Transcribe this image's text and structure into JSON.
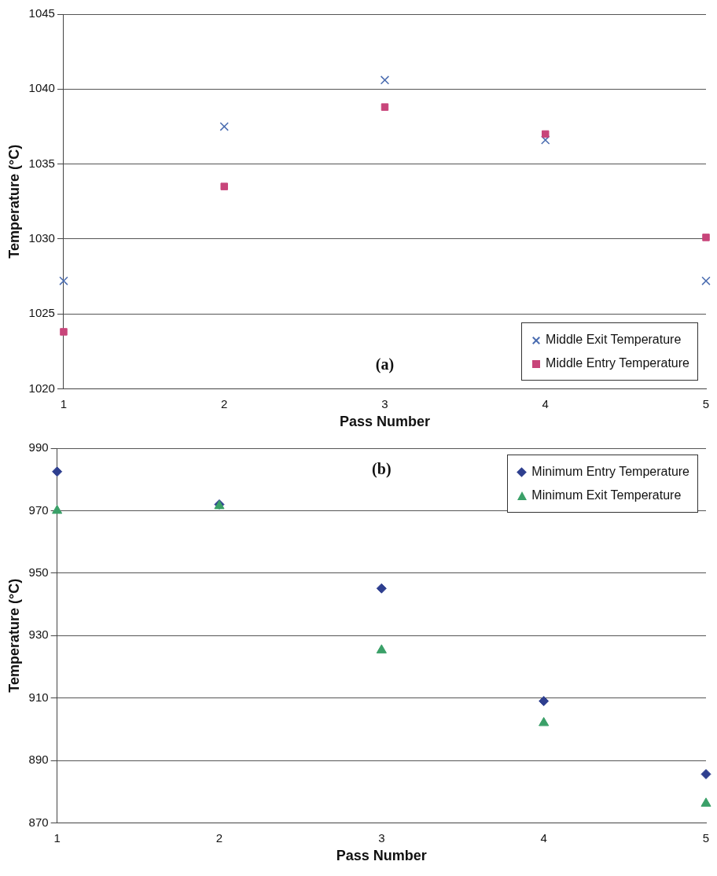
{
  "chart_data": [
    {
      "type": "scatter",
      "xlabel": "Pass Number",
      "ylabel": "Temperature (°C)",
      "x": [
        1,
        2,
        3,
        4,
        5
      ],
      "xlim": [
        1,
        5
      ],
      "xticks": [
        1,
        2,
        3,
        4,
        5
      ],
      "ylim": [
        1020,
        1045
      ],
      "yticks": [
        1020,
        1025,
        1030,
        1035,
        1040,
        1045
      ],
      "grid": "y",
      "legend": "bottom right",
      "annotations": [
        "(a)"
      ],
      "series": [
        {
          "name": "Middle Exit Temperature",
          "color": "#4a6cb0",
          "marker": "cross",
          "values": [
            1027.2,
            1037.5,
            1040.6,
            1036.6,
            1027.2
          ]
        },
        {
          "name": "Middle Entry Temperature",
          "color": "#c8457a",
          "marker": "square",
          "values": [
            1023.8,
            1033.5,
            1038.8,
            1037.0,
            1030.1
          ]
        }
      ]
    },
    {
      "type": "scatter",
      "xlabel": "Pass Number",
      "ylabel": "Temperature (°C)",
      "x": [
        1,
        2,
        3,
        4,
        5
      ],
      "xlim": [
        1,
        5
      ],
      "xticks": [
        1,
        2,
        3,
        4,
        5
      ],
      "ylim": [
        870,
        990
      ],
      "yticks": [
        870,
        890,
        910,
        930,
        950,
        970,
        990
      ],
      "grid": "y",
      "legend": "top right",
      "annotations": [
        "(b)"
      ],
      "series": [
        {
          "name": "Minimum Entry Temperature",
          "color": "#2e3f8f",
          "marker": "diamond",
          "values": [
            982.5,
            972,
            945.1,
            909,
            885.6
          ]
        },
        {
          "name": "Minimum Exit Temperature",
          "color": "#3aa068",
          "marker": "triangle",
          "values": [
            970,
            971.5,
            925.3,
            902,
            876.2
          ]
        }
      ]
    }
  ]
}
